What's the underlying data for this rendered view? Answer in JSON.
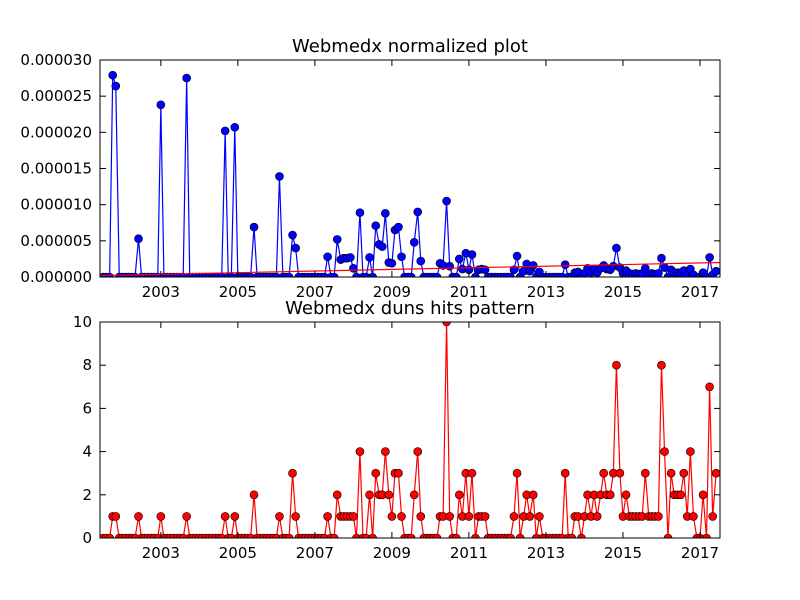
{
  "chart_data": [
    {
      "type": "line",
      "title": "Webmedx normalized plot",
      "xlim": [
        2001.42,
        2017.52
      ],
      "xticks": [
        2003,
        2005,
        2007,
        2009,
        2011,
        2013,
        2015,
        2017
      ],
      "ylim": [
        0,
        3e-05
      ],
      "yticks": [
        {
          "value": 0,
          "label": "0.000000"
        },
        {
          "value": 5e-06,
          "label": "0.000005"
        },
        {
          "value": 1e-05,
          "label": "0.000010"
        },
        {
          "value": 1.5e-05,
          "label": "0.000015"
        },
        {
          "value": 2e-05,
          "label": "0.000020"
        },
        {
          "value": 2.5e-05,
          "label": "0.000025"
        },
        {
          "value": 3e-05,
          "label": "0.000030"
        }
      ],
      "x": [
        2001.5,
        2001.58,
        2001.67,
        2001.75,
        2001.83,
        2001.92,
        2002,
        2002.08,
        2002.17,
        2002.25,
        2002.33,
        2002.42,
        2002.5,
        2002.58,
        2002.67,
        2002.75,
        2002.83,
        2002.92,
        2003,
        2003.08,
        2003.17,
        2003.25,
        2003.33,
        2003.42,
        2003.5,
        2003.58,
        2003.67,
        2003.75,
        2003.83,
        2003.92,
        2004,
        2004.08,
        2004.17,
        2004.25,
        2004.33,
        2004.42,
        2004.5,
        2004.58,
        2004.67,
        2004.75,
        2004.83,
        2004.92,
        2005,
        2005.08,
        2005.17,
        2005.25,
        2005.33,
        2005.42,
        2005.5,
        2005.58,
        2005.67,
        2005.75,
        2005.83,
        2005.92,
        2006,
        2006.08,
        2006.17,
        2006.25,
        2006.33,
        2006.42,
        2006.5,
        2006.58,
        2006.67,
        2006.75,
        2006.83,
        2006.92,
        2007,
        2007.08,
        2007.17,
        2007.25,
        2007.33,
        2007.42,
        2007.5,
        2007.58,
        2007.67,
        2007.75,
        2007.83,
        2007.92,
        2008,
        2008.08,
        2008.17,
        2008.25,
        2008.33,
        2008.42,
        2008.5,
        2008.58,
        2008.67,
        2008.75,
        2008.83,
        2008.92,
        2009,
        2009.08,
        2009.17,
        2009.25,
        2009.33,
        2009.42,
        2009.5,
        2009.58,
        2009.67,
        2009.75,
        2009.83,
        2009.92,
        2010,
        2010.08,
        2010.17,
        2010.25,
        2010.33,
        2010.42,
        2010.5,
        2010.58,
        2010.67,
        2010.75,
        2010.83,
        2010.92,
        2011,
        2011.08,
        2011.17,
        2011.25,
        2011.33,
        2011.42,
        2011.5,
        2011.58,
        2011.67,
        2011.75,
        2011.83,
        2011.92,
        2012,
        2012.08,
        2012.17,
        2012.25,
        2012.33,
        2012.42,
        2012.5,
        2012.58,
        2012.67,
        2012.75,
        2012.83,
        2012.92,
        2013,
        2013.08,
        2013.17,
        2013.25,
        2013.33,
        2013.42,
        2013.5,
        2013.58,
        2013.67,
        2013.75,
        2013.83,
        2013.92,
        2014,
        2014.08,
        2014.17,
        2014.25,
        2014.33,
        2014.42,
        2014.5,
        2014.58,
        2014.67,
        2014.75,
        2014.83,
        2014.92,
        2015,
        2015.08,
        2015.17,
        2015.25,
        2015.33,
        2015.42,
        2015.5,
        2015.58,
        2015.67,
        2015.75,
        2015.83,
        2015.92,
        2016,
        2016.08,
        2016.17,
        2016.25,
        2016.33,
        2016.42,
        2016.5,
        2016.58,
        2016.67,
        2016.75,
        2016.83,
        2016.92,
        2017,
        2017.08,
        2017.17,
        2017.25,
        2017.33,
        2017.42
      ],
      "series": [
        {
          "color": "#0000ff",
          "marker": true,
          "values": [
            0,
            0,
            0,
            2.79e-05,
            2.64e-05,
            0,
            0,
            0,
            0,
            0,
            0,
            5.3e-06,
            0,
            0,
            0,
            0,
            0,
            0,
            2.38e-05,
            0,
            0,
            0,
            0,
            0,
            0,
            0,
            2.75e-05,
            0,
            0,
            0,
            0,
            0,
            0,
            0,
            0,
            0,
            0,
            0,
            2.02e-05,
            0,
            0,
            2.07e-05,
            0,
            0,
            0,
            0,
            0,
            6.9e-06,
            0,
            0,
            0,
            0,
            0,
            0,
            0,
            1.39e-05,
            0,
            0,
            0,
            5.8e-06,
            4e-06,
            0,
            0,
            0,
            0,
            0,
            0,
            0,
            0,
            0,
            2.8e-06,
            0,
            0,
            5.2e-06,
            2.4e-06,
            2.6e-06,
            2.6e-06,
            2.7e-06,
            1.2e-06,
            0,
            8.9e-06,
            0,
            0,
            2.7e-06,
            0,
            7.1e-06,
            4.5e-06,
            4.2e-06,
            8.8e-06,
            2e-06,
            1.9e-06,
            6.5e-06,
            6.9e-06,
            2.8e-06,
            0,
            0,
            0,
            4.8e-06,
            9e-06,
            2.2e-06,
            0,
            0,
            0,
            0,
            0,
            1.9e-06,
            1.6e-06,
            1.05e-05,
            1.5e-06,
            0,
            0,
            2.5e-06,
            1.1e-06,
            3.3e-06,
            1e-06,
            3.1e-06,
            0,
            1e-06,
            1.1e-06,
            1e-06,
            0,
            0,
            0,
            0,
            0,
            0,
            0,
            0,
            1e-06,
            2.9e-06,
            0,
            8e-07,
            1.8e-06,
            8e-07,
            1.6e-06,
            0,
            7e-07,
            0,
            0,
            0,
            0,
            0,
            0,
            0,
            1.7e-06,
            0,
            0,
            6e-07,
            7e-07,
            0,
            5e-07,
            1.2e-06,
            6e-07,
            1.1e-06,
            6e-07,
            1.2e-06,
            1.6e-06,
            1.1e-06,
            1e-06,
            1.5e-06,
            4e-06,
            1.3e-06,
            5e-07,
            9e-07,
            5e-07,
            4e-07,
            5e-07,
            4e-07,
            5e-07,
            1.2e-06,
            4e-07,
            5e-07,
            4e-07,
            5e-07,
            2.6e-06,
            1.3e-06,
            0,
            1e-06,
            6e-07,
            6e-07,
            6e-07,
            9e-07,
            3e-07,
            1.1e-06,
            3e-07,
            0,
            0,
            6e-07,
            0,
            2.7e-06,
            3e-07,
            8e-07
          ]
        },
        {
          "color": "#ff0000",
          "marker": false,
          "x": [
            2001.42,
            2017.52
          ],
          "values": [
            2e-07,
            2e-06
          ]
        }
      ]
    },
    {
      "type": "line",
      "title": "Webmedx duns hits pattern",
      "xlim": [
        2001.42,
        2017.52
      ],
      "xticks": [
        2003,
        2005,
        2007,
        2009,
        2011,
        2013,
        2015,
        2017
      ],
      "ylim": [
        0,
        10
      ],
      "yticks": [
        0,
        2,
        4,
        6,
        8,
        10
      ],
      "x": [
        2001.5,
        2001.58,
        2001.67,
        2001.75,
        2001.83,
        2001.92,
        2002,
        2002.08,
        2002.17,
        2002.25,
        2002.33,
        2002.42,
        2002.5,
        2002.58,
        2002.67,
        2002.75,
        2002.83,
        2002.92,
        2003,
        2003.08,
        2003.17,
        2003.25,
        2003.33,
        2003.42,
        2003.5,
        2003.58,
        2003.67,
        2003.75,
        2003.83,
        2003.92,
        2004,
        2004.08,
        2004.17,
        2004.25,
        2004.33,
        2004.42,
        2004.5,
        2004.58,
        2004.67,
        2004.75,
        2004.83,
        2004.92,
        2005,
        2005.08,
        2005.17,
        2005.25,
        2005.33,
        2005.42,
        2005.5,
        2005.58,
        2005.67,
        2005.75,
        2005.83,
        2005.92,
        2006,
        2006.08,
        2006.17,
        2006.25,
        2006.33,
        2006.42,
        2006.5,
        2006.58,
        2006.67,
        2006.75,
        2006.83,
        2006.92,
        2007,
        2007.08,
        2007.17,
        2007.25,
        2007.33,
        2007.42,
        2007.5,
        2007.58,
        2007.67,
        2007.75,
        2007.83,
        2007.92,
        2008,
        2008.08,
        2008.17,
        2008.25,
        2008.33,
        2008.42,
        2008.5,
        2008.58,
        2008.67,
        2008.75,
        2008.83,
        2008.92,
        2009,
        2009.08,
        2009.17,
        2009.25,
        2009.33,
        2009.42,
        2009.5,
        2009.58,
        2009.67,
        2009.75,
        2009.83,
        2009.92,
        2010,
        2010.08,
        2010.17,
        2010.25,
        2010.33,
        2010.42,
        2010.5,
        2010.58,
        2010.67,
        2010.75,
        2010.83,
        2010.92,
        2011,
        2011.08,
        2011.17,
        2011.25,
        2011.33,
        2011.42,
        2011.5,
        2011.58,
        2011.67,
        2011.75,
        2011.83,
        2011.92,
        2012,
        2012.08,
        2012.17,
        2012.25,
        2012.33,
        2012.42,
        2012.5,
        2012.58,
        2012.67,
        2012.75,
        2012.83,
        2012.92,
        2013,
        2013.08,
        2013.17,
        2013.25,
        2013.33,
        2013.42,
        2013.5,
        2013.58,
        2013.67,
        2013.75,
        2013.83,
        2013.92,
        2014,
        2014.08,
        2014.17,
        2014.25,
        2014.33,
        2014.42,
        2014.5,
        2014.58,
        2014.67,
        2014.75,
        2014.83,
        2014.92,
        2015,
        2015.08,
        2015.17,
        2015.25,
        2015.33,
        2015.42,
        2015.5,
        2015.58,
        2015.67,
        2015.75,
        2015.83,
        2015.92,
        2016,
        2016.08,
        2016.17,
        2016.25,
        2016.33,
        2016.42,
        2016.5,
        2016.58,
        2016.67,
        2016.75,
        2016.83,
        2016.92,
        2017,
        2017.08,
        2017.17,
        2017.25,
        2017.33,
        2017.42
      ],
      "series": [
        {
          "color": "#ff0000",
          "marker": true,
          "values": [
            0,
            0,
            0,
            1,
            1,
            0,
            0,
            0,
            0,
            0,
            0,
            1,
            0,
            0,
            0,
            0,
            0,
            0,
            1,
            0,
            0,
            0,
            0,
            0,
            0,
            0,
            1,
            0,
            0,
            0,
            0,
            0,
            0,
            0,
            0,
            0,
            0,
            0,
            1,
            0,
            0,
            1,
            0,
            0,
            0,
            0,
            0,
            2,
            0,
            0,
            0,
            0,
            0,
            0,
            0,
            1,
            0,
            0,
            0,
            3,
            1,
            0,
            0,
            0,
            0,
            0,
            0,
            0,
            0,
            0,
            1,
            0,
            0,
            2,
            1,
            1,
            1,
            1,
            1,
            0,
            4,
            0,
            0,
            2,
            0,
            3,
            2,
            2,
            4,
            2,
            1,
            3,
            3,
            1,
            0,
            0,
            0,
            2,
            4,
            1,
            0,
            0,
            0,
            0,
            0,
            1,
            1,
            10,
            1,
            0,
            0,
            2,
            1,
            3,
            1,
            3,
            0,
            1,
            1,
            1,
            0,
            0,
            0,
            0,
            0,
            0,
            0,
            0,
            1,
            3,
            0,
            1,
            2,
            1,
            2,
            0,
            1,
            0,
            0,
            0,
            0,
            0,
            0,
            0,
            3,
            0,
            0,
            1,
            1,
            0,
            1,
            2,
            1,
            2,
            1,
            2,
            3,
            2,
            2,
            3,
            8,
            3,
            1,
            2,
            1,
            1,
            1,
            1,
            1,
            3,
            1,
            1,
            1,
            1,
            8,
            4,
            0,
            3,
            2,
            2,
            2,
            3,
            1,
            4,
            1,
            0,
            0,
            2,
            0,
            7,
            1,
            3
          ]
        }
      ]
    }
  ]
}
